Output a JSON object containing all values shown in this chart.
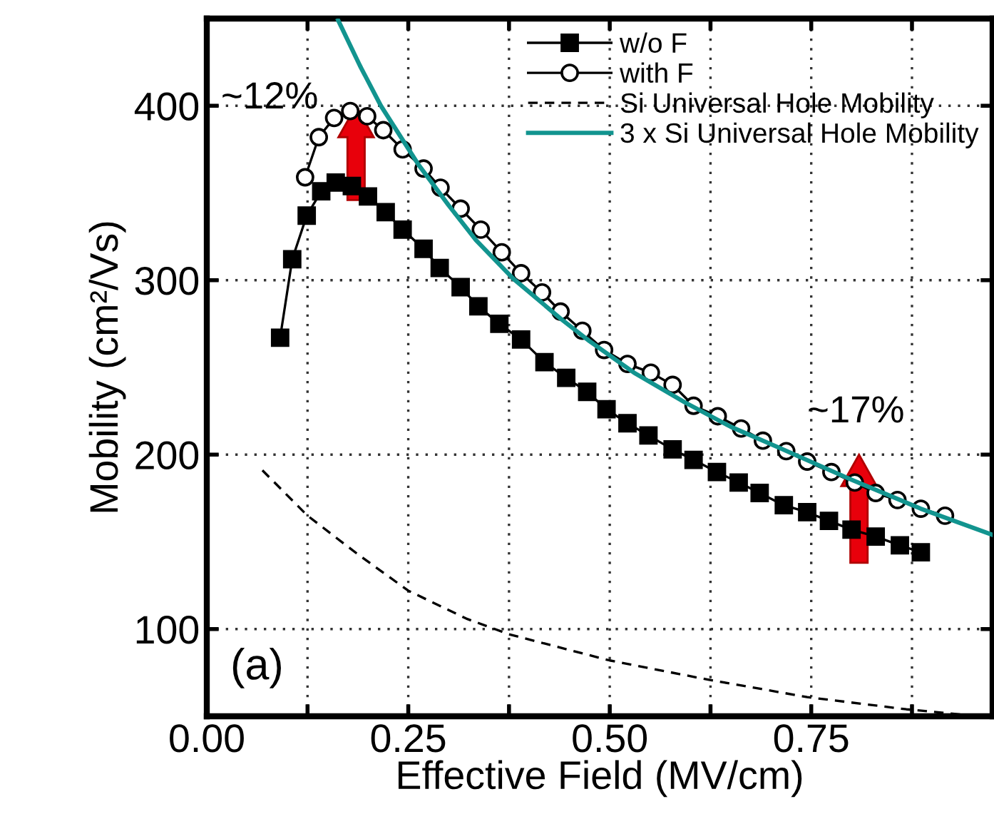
{
  "chart_data": {
    "type": "line",
    "xlabel": "Effective Field (MV/cm)",
    "ylabel": "Mobility (cm²/Vs)",
    "xlim": [
      0,
      0.975
    ],
    "ylim": [
      50,
      450
    ],
    "xticks": [
      {
        "value": 0,
        "label": "0.00"
      },
      {
        "value": 0.125,
        "label": null
      },
      0.25,
      {
        "value": 0.375,
        "label": null
      },
      {
        "value": 0.5,
        "label": "0.50"
      },
      {
        "value": 0.625,
        "label": null
      },
      0.75,
      {
        "value": 0.875,
        "label": null
      }
    ],
    "yticks": [
      100,
      200,
      300,
      400
    ],
    "grid": true,
    "legend": "top right",
    "series": [
      {
        "name": "w/o F",
        "color": "#000000",
        "marker": "square",
        "line_style": "solid",
        "x": [
          0.091,
          0.106,
          0.124,
          0.142,
          0.16,
          0.18,
          0.2,
          0.222,
          0.243,
          0.269,
          0.289,
          0.315,
          0.337,
          0.363,
          0.39,
          0.419,
          0.446,
          0.472,
          0.496,
          0.522,
          0.548,
          0.578,
          0.604,
          0.633,
          0.66,
          0.686,
          0.716,
          0.745,
          0.772,
          0.8,
          0.83,
          0.86,
          0.886
        ],
        "values": [
          267,
          312,
          337,
          351,
          356,
          354,
          348,
          339,
          329,
          318,
          307,
          296,
          285,
          275,
          266,
          253,
          244,
          236,
          226,
          218,
          211,
          203,
          197,
          190,
          184,
          178,
          171,
          167,
          162,
          157,
          153,
          148,
          144
        ]
      },
      {
        "name": "with F",
        "color": "#000000",
        "marker": "circle",
        "line_style": "solid",
        "x": [
          0.122,
          0.139,
          0.158,
          0.178,
          0.199,
          0.219,
          0.243,
          0.269,
          0.29,
          0.315,
          0.34,
          0.366,
          0.39,
          0.416,
          0.439,
          0.466,
          0.493,
          0.522,
          0.551,
          0.578,
          0.604,
          0.634,
          0.663,
          0.69,
          0.719,
          0.745,
          0.775,
          0.804,
          0.83,
          0.857,
          0.886,
          0.916
        ],
        "values": [
          359,
          382,
          393,
          397,
          394,
          386,
          375,
          364,
          353,
          341,
          329,
          316,
          304,
          293,
          282,
          271,
          260,
          252,
          247,
          240,
          228,
          222,
          215,
          208,
          202,
          196,
          190,
          184,
          178,
          174,
          169,
          165
        ]
      },
      {
        "name": "Si Universal Hole Mobility",
        "color": "#000000",
        "marker": "none",
        "line_style": "dashed",
        "x": [
          0.069,
          0.125,
          0.187,
          0.25,
          0.322,
          0.375,
          0.45,
          0.5,
          0.622,
          0.745,
          0.868,
          0.96
        ],
        "values": [
          191,
          165,
          143,
          122,
          106,
          97,
          88,
          82,
          71,
          61,
          54,
          50
        ]
      },
      {
        "name": "3 x Si Universal Hole Mobility",
        "color": "#12948f",
        "marker": "none",
        "line_style": "solid",
        "x": [
          0.163,
          0.19,
          0.216,
          0.263,
          0.3,
          0.334,
          0.38,
          0.439,
          0.475,
          0.53,
          0.593,
          0.65,
          0.71,
          0.798,
          0.886,
          0.975
        ],
        "values": [
          449,
          423,
          400,
          366,
          343,
          323,
          301,
          278,
          265,
          247,
          230,
          216,
          204,
          186,
          169,
          154
        ]
      }
    ],
    "annotations": [
      "~12%",
      "~17%",
      "(a)"
    ]
  }
}
